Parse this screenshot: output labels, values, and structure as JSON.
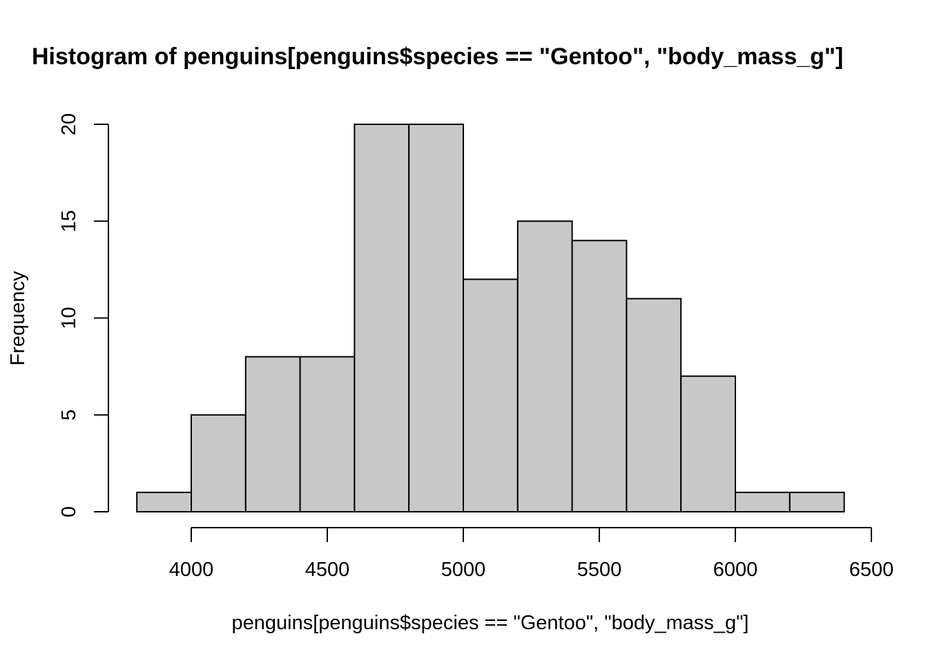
{
  "chart_data": {
    "type": "bar",
    "title": "Histogram of penguins[penguins$species == \"Gentoo\", \"body_mass_g\"]",
    "xlabel": "penguins[penguins$species == \"Gentoo\", \"body_mass_g\"]",
    "ylabel": "Frequency",
    "bins": [
      {
        "start": 3800,
        "end": 4000,
        "count": 1
      },
      {
        "start": 4000,
        "end": 4200,
        "count": 5
      },
      {
        "start": 4200,
        "end": 4400,
        "count": 8
      },
      {
        "start": 4400,
        "end": 4600,
        "count": 8
      },
      {
        "start": 4600,
        "end": 4800,
        "count": 20
      },
      {
        "start": 4800,
        "end": 5000,
        "count": 20
      },
      {
        "start": 5000,
        "end": 5200,
        "count": 12
      },
      {
        "start": 5200,
        "end": 5400,
        "count": 15
      },
      {
        "start": 5400,
        "end": 5600,
        "count": 14
      },
      {
        "start": 5600,
        "end": 5800,
        "count": 11
      },
      {
        "start": 5800,
        "end": 6000,
        "count": 7
      },
      {
        "start": 6000,
        "end": 6200,
        "count": 1
      },
      {
        "start": 6200,
        "end": 6400,
        "count": 1
      }
    ],
    "x_ticks": [
      "4000",
      "4500",
      "5000",
      "5500",
      "6000",
      "6500"
    ],
    "y_ticks": [
      "0",
      "5",
      "10",
      "15",
      "20"
    ],
    "xlim": [
      3700,
      6500
    ],
    "ylim": [
      0,
      20
    ],
    "bar_color": "#c8c8c8",
    "grid": false
  }
}
